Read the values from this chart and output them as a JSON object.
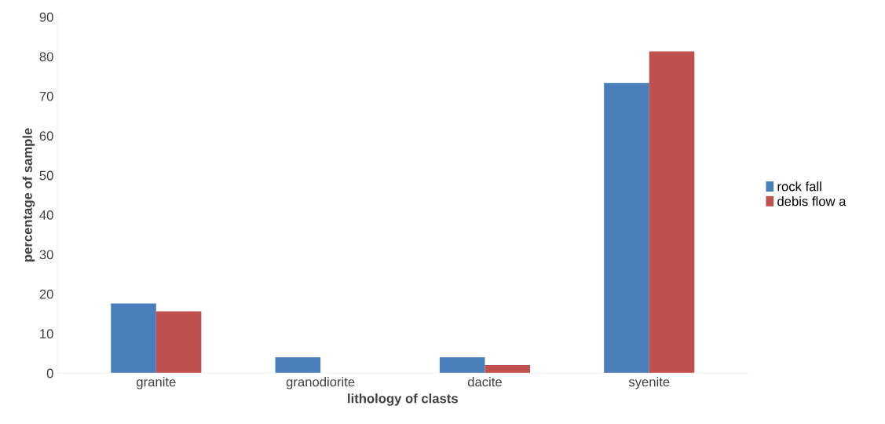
{
  "chart_data": {
    "type": "bar",
    "xlabel": "lithology of clasts",
    "ylabel": "percentage of sample",
    "categories": [
      "granite",
      "granodiorite",
      "dacite",
      "syenite"
    ],
    "series": [
      {
        "name": "rock fall",
        "color": "#4a7ebb",
        "values": [
          17.6,
          4,
          4,
          73.3
        ]
      },
      {
        "name": "debis flow a",
        "color": "#c0504d",
        "values": [
          15.6,
          0,
          2,
          81.3
        ]
      }
    ],
    "ylim": [
      0,
      90
    ],
    "yticks": [
      0,
      10,
      20,
      30,
      40,
      50,
      60,
      70,
      80,
      90
    ],
    "grid": false,
    "legend": "right"
  }
}
